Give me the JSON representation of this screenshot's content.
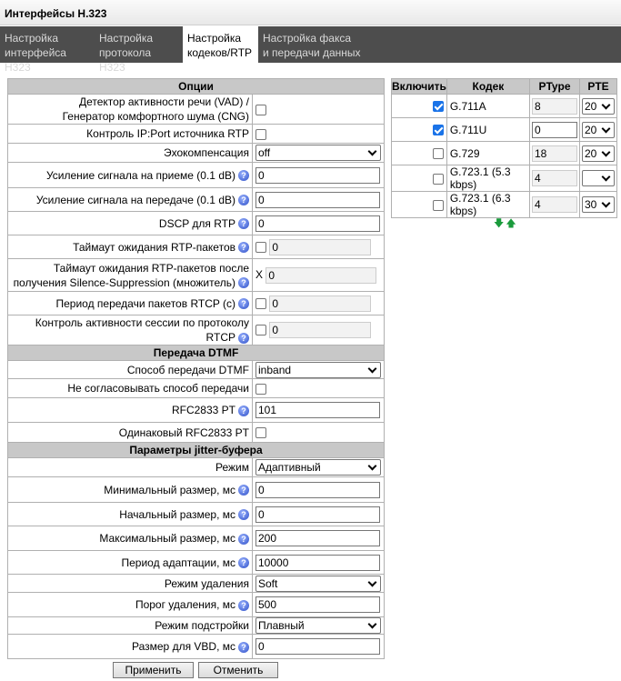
{
  "title": "Интерфейсы H.323",
  "tabs": [
    {
      "label1": "Настройка",
      "label2": "интерфейса H323"
    },
    {
      "label1": "Настройка",
      "label2": "протокола H323"
    },
    {
      "label1": "Настройка",
      "label2": "кодеков/RTP"
    },
    {
      "label1": "Настройка факса",
      "label2": "и передачи данных"
    }
  ],
  "options": {
    "header": "Опции",
    "vad_1": "Детектор активности речи (VAD) /",
    "vad_2": "Генератор комфортного шума (CNG)",
    "ipport": "Контроль IP:Port источника RTP",
    "echo": "Эхокомпенсация",
    "echo_value": "off",
    "gain_rx": "Усиление сигнала на приеме (0.1 dB)",
    "gain_rx_value": "0",
    "gain_tx": "Усиление сигнала на передаче (0.1 dB)",
    "gain_tx_value": "0",
    "dscp": "DSCP для RTP",
    "dscp_value": "0",
    "rtp_timeout": "Таймаут ожидания RTP-пакетов",
    "rtp_timeout_value": "0",
    "ss_timeout_1": "Таймаут ожидания RTP-пакетов после",
    "ss_timeout_2": "получения Silence-Suppression (множитель)",
    "ss_prefix": "X",
    "ss_value": "0",
    "rtcp_period": "Период передачи пакетов RTCP (с)",
    "rtcp_period_value": "0",
    "rtcp_control": "Контроль активности сессии по протоколу RTCP",
    "rtcp_control_value": "0"
  },
  "dtmf": {
    "header": "Передача DTMF",
    "method": "Способ передачи DTMF",
    "method_value": "inband",
    "noneg": "Не согласовывать способ передачи",
    "rfc_pt": "RFC2833 PT",
    "rfc_pt_value": "101",
    "same_rfc": "Одинаковый RFC2833 PT"
  },
  "jitter": {
    "header": "Параметры jitter-буфера",
    "mode": "Режим",
    "mode_value": "Адаптивный",
    "min": "Минимальный размер, мс",
    "min_value": "0",
    "init": "Начальный размер, мс",
    "init_value": "0",
    "max": "Максимальный размер, мс",
    "max_value": "200",
    "adapt": "Период адаптации, мс",
    "adapt_value": "10000",
    "del_mode": "Режим удаления",
    "del_mode_value": "Soft",
    "del_thr": "Порог удаления, мс",
    "del_thr_value": "500",
    "tune": "Режим подстройки",
    "tune_value": "Плавный",
    "vbd": "Размер для VBD, мс",
    "vbd_value": "0"
  },
  "codecs": {
    "headers": [
      "Включить",
      "Кодек",
      "PType",
      "PTE"
    ],
    "rows": [
      {
        "enabled": true,
        "name": "G.711A",
        "ptype": "8",
        "pte": "20"
      },
      {
        "enabled": true,
        "name": "G.711U",
        "ptype": "0",
        "pte": "20"
      },
      {
        "enabled": false,
        "name": "G.729",
        "ptype": "18",
        "pte": "20"
      },
      {
        "enabled": false,
        "name": "G.723.1 (5.3 kbps)",
        "ptype": "4",
        "pte": ""
      },
      {
        "enabled": false,
        "name": "G.723.1 (6.3 kbps)",
        "ptype": "4",
        "pte": "30"
      }
    ]
  },
  "buttons": {
    "apply": "Применить",
    "cancel": "Отменить"
  },
  "colors": {
    "tab_bar": "#4d4d4d",
    "header_bg": "#c8c8c8",
    "checkbox": "#1a73e8",
    "arrows": "#1a9b3c"
  }
}
